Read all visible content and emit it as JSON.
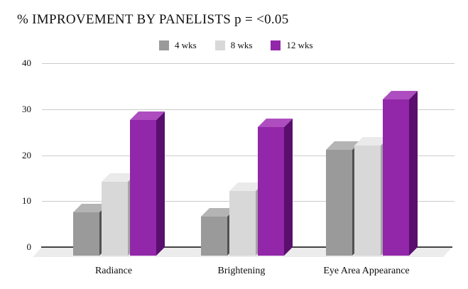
{
  "title": "% IMPROVEMENT BY PANELISTS p = <0.05",
  "chart_data": {
    "type": "bar",
    "style": "3d-grouped",
    "title": "% IMPROVEMENT BY PANELISTS p = <0.05",
    "categories": [
      "Radiance",
      "Brightening",
      "Eye Area Appearance"
    ],
    "series": [
      {
        "name": "4 wks",
        "values": [
          9.5,
          8.5,
          23
        ],
        "color": "#9a9a9a",
        "color_top": "#b4b4b4",
        "color_side": "#515151"
      },
      {
        "name": "8 wks",
        "values": [
          16,
          14,
          24
        ],
        "color": "#d8d8d8",
        "color_top": "#eaeaea",
        "color_side": "#a6a6a6"
      },
      {
        "name": "12 wks",
        "values": [
          29.5,
          28,
          34
        ],
        "color": "#9227a9",
        "color_top": "#ad4dbf",
        "color_side": "#5a0f6e"
      }
    ],
    "yticks": [
      0,
      10,
      20,
      30,
      40
    ],
    "ylim": [
      0,
      40
    ],
    "xlabel": "",
    "ylabel": "",
    "grid": true,
    "legend_position": "top-center",
    "colors": {
      "gridline": "#cbcbcb",
      "baseline": "#434343",
      "floor": "#ececec",
      "background": "#ffffff",
      "text": "#0d0d0d"
    }
  }
}
